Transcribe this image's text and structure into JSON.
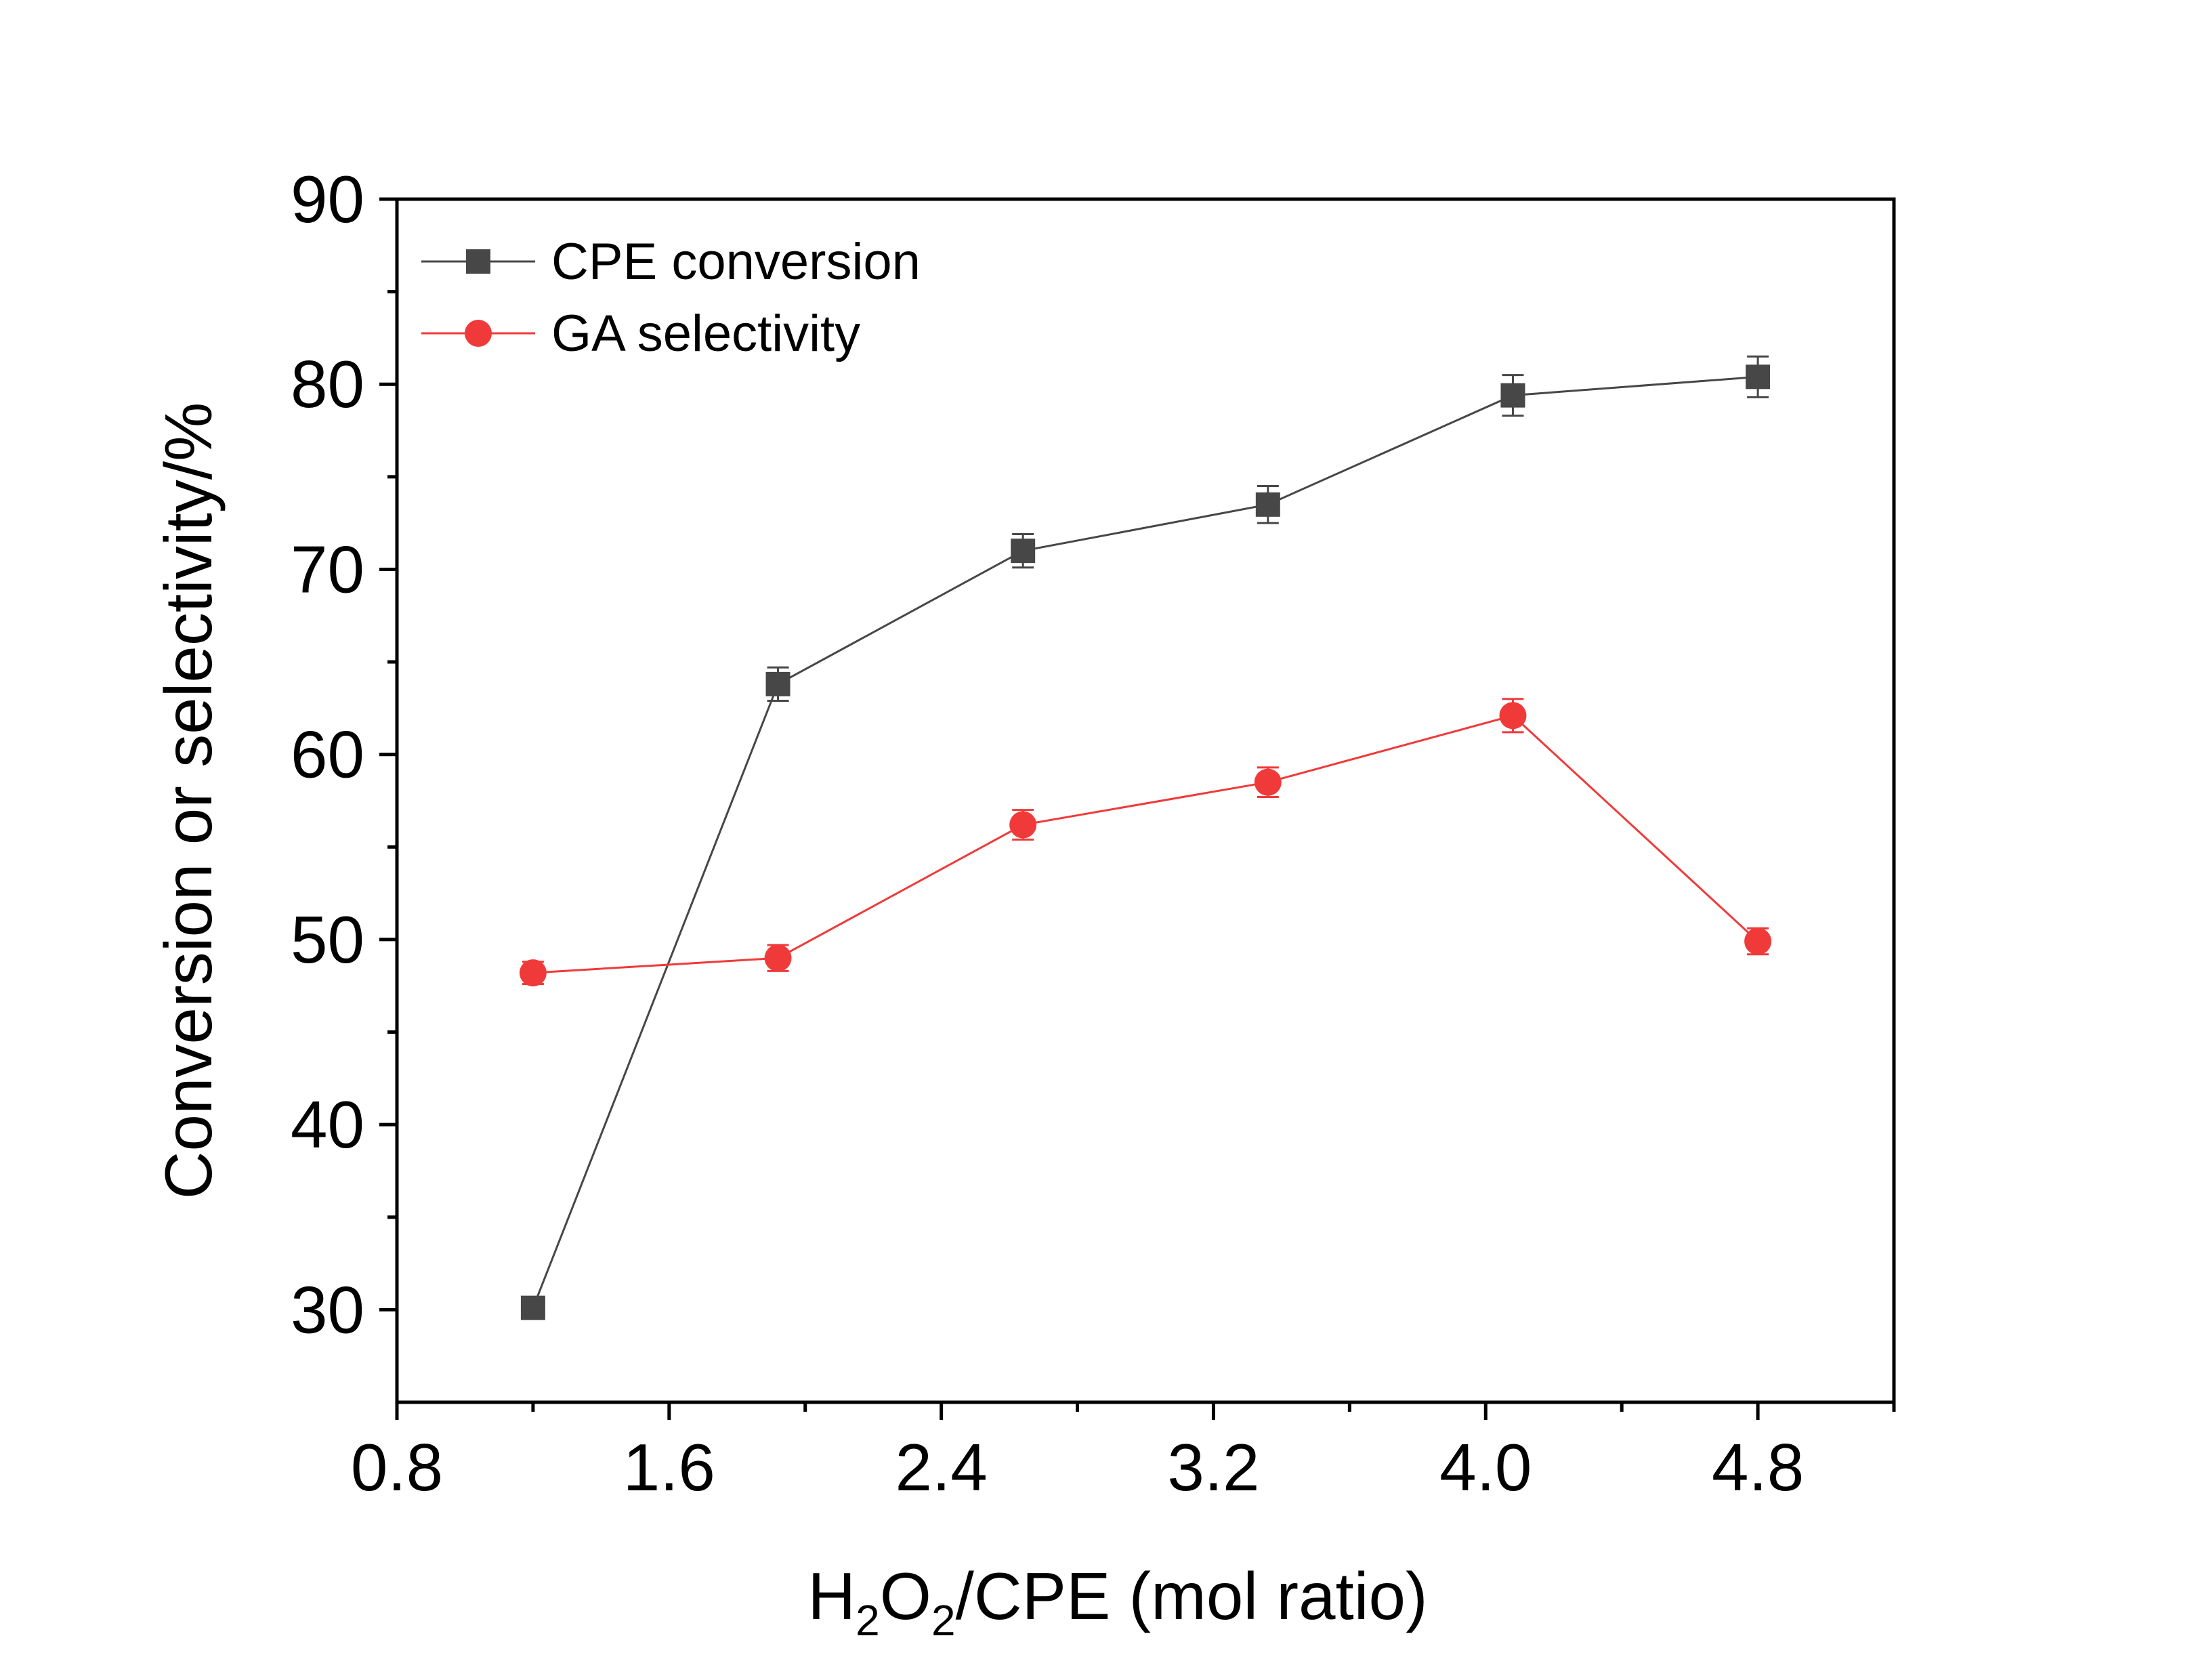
{
  "chart_data": {
    "type": "line",
    "x": [
      1.2,
      1.92,
      2.64,
      3.36,
      4.08,
      4.8
    ],
    "series": [
      {
        "name": "CPE conversion",
        "values": [
          30.1,
          63.8,
          71.0,
          73.5,
          79.4,
          80.4
        ],
        "errors": [
          0.4,
          0.9,
          0.9,
          1.0,
          1.1,
          1.1
        ],
        "color": "#474747",
        "marker": "square"
      },
      {
        "name": "GA selectivity",
        "values": [
          48.2,
          49.0,
          56.2,
          58.5,
          62.1,
          49.9
        ],
        "errors": [
          0.6,
          0.7,
          0.8,
          0.8,
          0.9,
          0.7
        ],
        "color": "#f03a3a",
        "marker": "circle"
      }
    ],
    "xlabel_main": "H",
    "xlabel_sub1": "2",
    "xlabel_mid": "O",
    "xlabel_sub2": "2",
    "xlabel_rest": "/CPE (mol ratio)",
    "ylabel": "Conversion or selectivity/%",
    "xlim": [
      0.8,
      5.2
    ],
    "ylim": [
      25,
      90
    ],
    "xticks": [
      "0.8",
      "1.6",
      "2.4",
      "3.2",
      "4.0",
      "4.8"
    ],
    "xtick_values": [
      0.8,
      1.6,
      2.4,
      3.2,
      4.0,
      4.8
    ],
    "yticks": [
      "30",
      "40",
      "50",
      "60",
      "70",
      "80",
      "90"
    ],
    "ytick_values": [
      30,
      40,
      50,
      60,
      70,
      80,
      90
    ],
    "legend_position": "top-left",
    "grid": false
  }
}
